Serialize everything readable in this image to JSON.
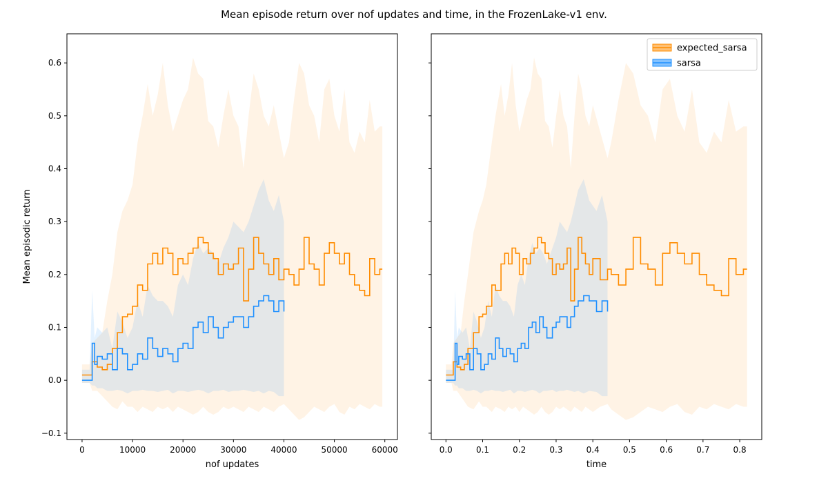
{
  "figure": {
    "title": "Mean episode return over nof updates and time, in the FrozenLake-v1 env."
  },
  "colors": {
    "expected_sarsa": "#ff8c00",
    "sarsa": "#1e90ff"
  },
  "chart_data": [
    {
      "type": "line",
      "xlabel": "nof updates",
      "ylabel": "Mean episodic return",
      "xlim": [
        -3000,
        62500
      ],
      "ylim": [
        -0.112,
        0.655
      ],
      "xticks": [
        0,
        10000,
        20000,
        30000,
        40000,
        50000,
        60000
      ],
      "xtick_labels": [
        "0",
        "10000",
        "20000",
        "30000",
        "40000",
        "50000",
        "60000"
      ],
      "yticks": [
        -0.1,
        0.0,
        0.1,
        0.2,
        0.3,
        0.4,
        0.5,
        0.6
      ],
      "ytick_labels": [
        "−0.1",
        "0.0",
        "0.1",
        "0.2",
        "0.3",
        "0.4",
        "0.5",
        "0.6"
      ],
      "legend": "none",
      "series": [
        {
          "name": "expected_sarsa",
          "x": [
            0,
            1500,
            2000,
            3000,
            4000,
            5000,
            6000,
            7000,
            8000,
            9000,
            10000,
            11000,
            12000,
            13000,
            14000,
            15000,
            16000,
            17000,
            18000,
            19000,
            20000,
            21000,
            22000,
            23000,
            24000,
            25000,
            26000,
            27000,
            28000,
            29000,
            30000,
            31000,
            32000,
            33000,
            34000,
            35000,
            36000,
            37000,
            38000,
            39000,
            40000,
            41000,
            42000,
            43000,
            44000,
            45000,
            46000,
            47000,
            48000,
            49000,
            50000,
            51000,
            52000,
            53000,
            54000,
            55000,
            56000,
            57000,
            58000,
            59000,
            59500
          ],
          "y": [
            0.01,
            0.01,
            0.035,
            0.025,
            0.02,
            0.03,
            0.06,
            0.09,
            0.12,
            0.125,
            0.14,
            0.18,
            0.17,
            0.22,
            0.24,
            0.22,
            0.25,
            0.24,
            0.2,
            0.23,
            0.22,
            0.24,
            0.25,
            0.27,
            0.26,
            0.24,
            0.23,
            0.2,
            0.22,
            0.21,
            0.22,
            0.25,
            0.15,
            0.21,
            0.27,
            0.24,
            0.22,
            0.2,
            0.23,
            0.19,
            0.21,
            0.2,
            0.18,
            0.21,
            0.27,
            0.22,
            0.21,
            0.18,
            0.24,
            0.26,
            0.24,
            0.22,
            0.24,
            0.2,
            0.18,
            0.17,
            0.16,
            0.23,
            0.2,
            0.21,
            0.21
          ],
          "lower": [
            -0.005,
            -0.005,
            -0.02,
            -0.02,
            -0.03,
            -0.04,
            -0.05,
            -0.055,
            -0.04,
            -0.05,
            -0.05,
            -0.06,
            -0.05,
            -0.055,
            -0.06,
            -0.05,
            -0.055,
            -0.05,
            -0.06,
            -0.05,
            -0.055,
            -0.06,
            -0.065,
            -0.06,
            -0.05,
            -0.06,
            -0.065,
            -0.06,
            -0.05,
            -0.055,
            -0.05,
            -0.055,
            -0.06,
            -0.05,
            -0.055,
            -0.06,
            -0.05,
            -0.055,
            -0.06,
            -0.05,
            -0.045,
            -0.055,
            -0.065,
            -0.075,
            -0.07,
            -0.06,
            -0.05,
            -0.055,
            -0.06,
            -0.05,
            -0.045,
            -0.06,
            -0.065,
            -0.05,
            -0.055,
            -0.045,
            -0.05,
            -0.055,
            -0.045,
            -0.05,
            -0.05
          ],
          "upper": [
            0.03,
            0.03,
            0.07,
            0.08,
            0.09,
            0.15,
            0.2,
            0.28,
            0.32,
            0.34,
            0.37,
            0.45,
            0.5,
            0.56,
            0.5,
            0.54,
            0.6,
            0.52,
            0.47,
            0.5,
            0.53,
            0.55,
            0.61,
            0.58,
            0.57,
            0.49,
            0.48,
            0.44,
            0.5,
            0.55,
            0.5,
            0.48,
            0.4,
            0.5,
            0.58,
            0.55,
            0.5,
            0.48,
            0.52,
            0.47,
            0.42,
            0.45,
            0.53,
            0.6,
            0.58,
            0.52,
            0.5,
            0.45,
            0.55,
            0.57,
            0.5,
            0.47,
            0.55,
            0.45,
            0.43,
            0.47,
            0.45,
            0.53,
            0.47,
            0.48,
            0.48
          ]
        },
        {
          "name": "sarsa",
          "x": [
            0,
            1500,
            2000,
            2500,
            3000,
            4000,
            5000,
            6000,
            7000,
            8000,
            9000,
            10000,
            11000,
            12000,
            13000,
            14000,
            15000,
            16000,
            17000,
            18000,
            19000,
            20000,
            21000,
            22000,
            23000,
            24000,
            25000,
            26000,
            27000,
            28000,
            29000,
            30000,
            31000,
            32000,
            33000,
            34000,
            35000,
            36000,
            37000,
            38000,
            39000,
            40000
          ],
          "y": [
            0.0,
            0.0,
            0.07,
            0.03,
            0.045,
            0.04,
            0.05,
            0.02,
            0.06,
            0.05,
            0.02,
            0.03,
            0.05,
            0.04,
            0.08,
            0.06,
            0.045,
            0.06,
            0.05,
            0.035,
            0.06,
            0.07,
            0.06,
            0.1,
            0.11,
            0.09,
            0.12,
            0.1,
            0.08,
            0.1,
            0.11,
            0.12,
            0.12,
            0.1,
            0.12,
            0.14,
            0.15,
            0.16,
            0.15,
            0.13,
            0.15,
            0.13
          ],
          "lower": [
            -0.005,
            -0.005,
            -0.01,
            -0.01,
            -0.015,
            -0.015,
            -0.02,
            -0.02,
            -0.018,
            -0.02,
            -0.025,
            -0.02,
            -0.02,
            -0.018,
            -0.02,
            -0.02,
            -0.022,
            -0.02,
            -0.018,
            -0.025,
            -0.02,
            -0.02,
            -0.022,
            -0.02,
            -0.018,
            -0.02,
            -0.025,
            -0.02,
            -0.02,
            -0.018,
            -0.022,
            -0.02,
            -0.02,
            -0.018,
            -0.02,
            -0.022,
            -0.02,
            -0.025,
            -0.02,
            -0.022,
            -0.03,
            -0.03
          ],
          "upper": [
            0.02,
            0.02,
            0.17,
            0.08,
            0.1,
            0.09,
            0.1,
            0.06,
            0.13,
            0.11,
            0.08,
            0.1,
            0.15,
            0.12,
            0.18,
            0.16,
            0.15,
            0.15,
            0.14,
            0.12,
            0.18,
            0.2,
            0.18,
            0.23,
            0.26,
            0.24,
            0.25,
            0.24,
            0.22,
            0.25,
            0.27,
            0.3,
            0.29,
            0.28,
            0.3,
            0.33,
            0.36,
            0.38,
            0.34,
            0.32,
            0.35,
            0.3
          ]
        }
      ]
    },
    {
      "type": "line",
      "xlabel": "time",
      "ylabel": "",
      "xlim": [
        -0.04,
        0.86
      ],
      "ylim": [
        -0.112,
        0.655
      ],
      "xticks": [
        0.0,
        0.1,
        0.2,
        0.3,
        0.4,
        0.5,
        0.6,
        0.7,
        0.8
      ],
      "xtick_labels": [
        "0.0",
        "0.1",
        "0.2",
        "0.3",
        "0.4",
        "0.5",
        "0.6",
        "0.7",
        "0.8"
      ],
      "yticks": [
        -0.1,
        0.0,
        0.1,
        0.2,
        0.3,
        0.4,
        0.5,
        0.6
      ],
      "ytick_labels": [
        "",
        "",
        "",
        "",
        "",
        "",
        "",
        ""
      ],
      "legend": "top-right",
      "series": [
        {
          "name": "expected_sarsa",
          "x": [
            0.0,
            0.015,
            0.02,
            0.03,
            0.04,
            0.05,
            0.06,
            0.075,
            0.09,
            0.1,
            0.11,
            0.125,
            0.135,
            0.15,
            0.16,
            0.17,
            0.18,
            0.19,
            0.2,
            0.21,
            0.22,
            0.23,
            0.24,
            0.25,
            0.26,
            0.27,
            0.28,
            0.29,
            0.3,
            0.31,
            0.32,
            0.33,
            0.34,
            0.35,
            0.36,
            0.37,
            0.38,
            0.39,
            0.4,
            0.42,
            0.44,
            0.45,
            0.47,
            0.49,
            0.51,
            0.53,
            0.55,
            0.57,
            0.59,
            0.61,
            0.63,
            0.65,
            0.67,
            0.69,
            0.71,
            0.73,
            0.75,
            0.77,
            0.79,
            0.81,
            0.82
          ],
          "y": [
            0.01,
            0.01,
            0.035,
            0.025,
            0.02,
            0.03,
            0.06,
            0.09,
            0.12,
            0.125,
            0.14,
            0.18,
            0.17,
            0.22,
            0.24,
            0.22,
            0.25,
            0.24,
            0.2,
            0.23,
            0.22,
            0.24,
            0.25,
            0.27,
            0.26,
            0.24,
            0.23,
            0.2,
            0.22,
            0.21,
            0.22,
            0.25,
            0.15,
            0.21,
            0.27,
            0.24,
            0.22,
            0.2,
            0.23,
            0.19,
            0.21,
            0.2,
            0.18,
            0.21,
            0.27,
            0.22,
            0.21,
            0.18,
            0.24,
            0.26,
            0.24,
            0.22,
            0.24,
            0.2,
            0.18,
            0.17,
            0.16,
            0.23,
            0.2,
            0.21,
            0.21
          ],
          "lower": [
            -0.005,
            -0.005,
            -0.02,
            -0.02,
            -0.03,
            -0.04,
            -0.05,
            -0.055,
            -0.04,
            -0.05,
            -0.05,
            -0.06,
            -0.05,
            -0.055,
            -0.06,
            -0.05,
            -0.055,
            -0.05,
            -0.06,
            -0.05,
            -0.055,
            -0.06,
            -0.065,
            -0.06,
            -0.05,
            -0.06,
            -0.065,
            -0.06,
            -0.05,
            -0.055,
            -0.05,
            -0.055,
            -0.06,
            -0.05,
            -0.055,
            -0.06,
            -0.05,
            -0.055,
            -0.06,
            -0.05,
            -0.045,
            -0.055,
            -0.065,
            -0.075,
            -0.07,
            -0.06,
            -0.05,
            -0.055,
            -0.06,
            -0.05,
            -0.045,
            -0.06,
            -0.065,
            -0.05,
            -0.055,
            -0.045,
            -0.05,
            -0.055,
            -0.045,
            -0.05,
            -0.05
          ],
          "upper": [
            0.03,
            0.03,
            0.07,
            0.08,
            0.09,
            0.15,
            0.2,
            0.28,
            0.32,
            0.34,
            0.37,
            0.45,
            0.5,
            0.56,
            0.5,
            0.54,
            0.6,
            0.52,
            0.47,
            0.5,
            0.53,
            0.55,
            0.61,
            0.58,
            0.57,
            0.49,
            0.48,
            0.44,
            0.5,
            0.55,
            0.5,
            0.48,
            0.4,
            0.5,
            0.58,
            0.55,
            0.5,
            0.48,
            0.52,
            0.47,
            0.42,
            0.45,
            0.53,
            0.6,
            0.58,
            0.52,
            0.5,
            0.45,
            0.55,
            0.57,
            0.5,
            0.47,
            0.55,
            0.45,
            0.43,
            0.47,
            0.45,
            0.53,
            0.47,
            0.48,
            0.48
          ]
        },
        {
          "name": "sarsa",
          "x": [
            0.0,
            0.02,
            0.025,
            0.03,
            0.035,
            0.045,
            0.055,
            0.065,
            0.075,
            0.085,
            0.095,
            0.105,
            0.115,
            0.125,
            0.135,
            0.145,
            0.155,
            0.165,
            0.175,
            0.185,
            0.195,
            0.205,
            0.215,
            0.225,
            0.235,
            0.245,
            0.255,
            0.265,
            0.275,
            0.29,
            0.3,
            0.31,
            0.32,
            0.33,
            0.34,
            0.35,
            0.36,
            0.375,
            0.39,
            0.41,
            0.425,
            0.44
          ],
          "y": [
            0.0,
            0.0,
            0.07,
            0.03,
            0.045,
            0.04,
            0.05,
            0.02,
            0.06,
            0.05,
            0.02,
            0.03,
            0.05,
            0.04,
            0.08,
            0.06,
            0.045,
            0.06,
            0.05,
            0.035,
            0.06,
            0.07,
            0.06,
            0.1,
            0.11,
            0.09,
            0.12,
            0.1,
            0.08,
            0.1,
            0.11,
            0.12,
            0.12,
            0.1,
            0.12,
            0.14,
            0.15,
            0.16,
            0.15,
            0.13,
            0.15,
            0.13
          ],
          "lower": [
            -0.005,
            -0.005,
            -0.01,
            -0.01,
            -0.015,
            -0.015,
            -0.02,
            -0.02,
            -0.018,
            -0.02,
            -0.025,
            -0.02,
            -0.02,
            -0.018,
            -0.02,
            -0.02,
            -0.022,
            -0.02,
            -0.018,
            -0.025,
            -0.02,
            -0.02,
            -0.022,
            -0.02,
            -0.018,
            -0.02,
            -0.025,
            -0.02,
            -0.02,
            -0.018,
            -0.022,
            -0.02,
            -0.02,
            -0.018,
            -0.02,
            -0.022,
            -0.02,
            -0.025,
            -0.02,
            -0.022,
            -0.03,
            -0.03
          ],
          "upper": [
            0.02,
            0.02,
            0.17,
            0.08,
            0.1,
            0.09,
            0.1,
            0.06,
            0.13,
            0.11,
            0.08,
            0.1,
            0.15,
            0.12,
            0.18,
            0.16,
            0.15,
            0.15,
            0.14,
            0.12,
            0.18,
            0.2,
            0.18,
            0.23,
            0.26,
            0.24,
            0.25,
            0.24,
            0.22,
            0.25,
            0.27,
            0.3,
            0.29,
            0.28,
            0.3,
            0.33,
            0.36,
            0.38,
            0.34,
            0.32,
            0.35,
            0.3
          ]
        }
      ]
    }
  ]
}
